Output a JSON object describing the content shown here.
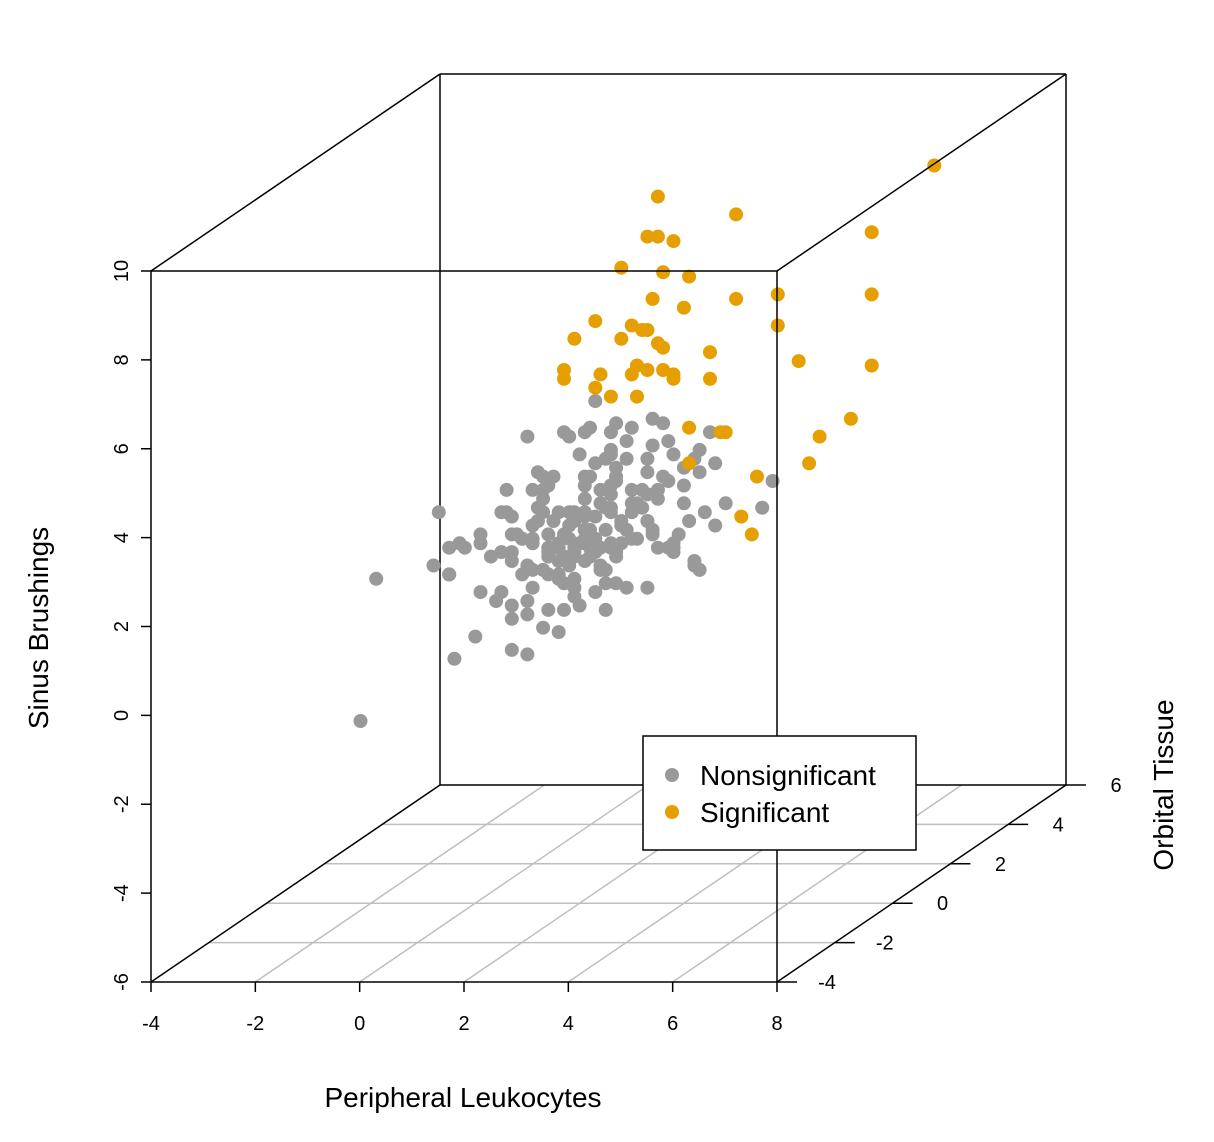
{
  "chart_data": {
    "type": "scatter3d",
    "title": "",
    "xlabel": "Peripheral Leukocytes",
    "ylabel": "Orbital Tissue",
    "zlabel": "Sinus Brushings",
    "xlim": [
      -4,
      8
    ],
    "ylim": [
      -4,
      6
    ],
    "zlim": [
      -6,
      10
    ],
    "x_ticks": [
      "-4",
      "-2",
      "0",
      "2",
      "4",
      "6",
      "8"
    ],
    "y_ticks": [
      "-4",
      "-2",
      "0",
      "2",
      "4",
      "6"
    ],
    "z_ticks": [
      "-6",
      "-4",
      "-2",
      "0",
      "2",
      "4",
      "6",
      "8",
      "10"
    ],
    "grid": "floor",
    "legend": {
      "position": "bottom-right",
      "entries": [
        "Nonsignificant",
        "Significant"
      ]
    },
    "colors": {
      "Nonsignificant": "#999999",
      "Significant": "#E69F00"
    },
    "series": [
      {
        "name": "Nonsignificant",
        "points": [
          [
            -0.4,
            0,
            -0.5
          ],
          [
            1.0,
            0,
            -0.4
          ],
          [
            -1.9,
            0,
            1.3
          ],
          [
            -2.2,
            0,
            -1.9
          ],
          [
            1.2,
            0,
            3.7
          ],
          [
            2.0,
            0,
            4.1
          ],
          [
            1.5,
            0,
            3.6
          ],
          [
            2.4,
            0,
            3.3
          ],
          [
            0.1,
            0,
            2.3
          ],
          [
            1.8,
            0,
            2.5
          ],
          [
            3.2,
            0,
            2.9
          ],
          [
            2.5,
            0,
            2.9
          ],
          [
            3.6,
            0,
            3.6
          ],
          [
            3.7,
            0,
            3.5
          ],
          [
            -0.5,
            0,
            2.0
          ],
          [
            0.1,
            0,
            2.1
          ],
          [
            1.3,
            0,
            3.1
          ],
          [
            1.9,
            0,
            2.6
          ],
          [
            0.7,
            0,
            1.9
          ],
          [
            2.1,
            0,
            2.1
          ],
          [
            2.2,
            0,
            2.4
          ],
          [
            -0.5,
            0,
            1.4
          ],
          [
            -0.7,
            0,
            2.8
          ],
          [
            1.1,
            0,
            2.1
          ],
          [
            -0.2,
            0,
            2.0
          ],
          [
            1.0,
            0,
            1.6
          ],
          [
            1.0,
            0,
            0.8
          ],
          [
            3.4,
            0,
            2.3
          ],
          [
            1.9,
            0,
            2.8
          ],
          [
            2.6,
            0,
            2.0
          ],
          [
            1.1,
            0,
            2.5
          ],
          [
            1.6,
            0,
            1.7
          ],
          [
            2.5,
            0,
            4.0
          ],
          [
            4.3,
            0,
            3.7
          ],
          [
            0.7,
            0,
            2.7
          ],
          [
            1.1,
            0,
            3.3
          ],
          [
            2.5,
            0,
            1.2
          ],
          [
            1.1,
            0,
            2.2
          ],
          [
            2.1,
            0,
            2.4
          ],
          [
            3.3,
            0,
            1.1
          ],
          [
            2.6,
            0,
            2.9
          ],
          [
            3.5,
            0,
            3.3
          ],
          [
            1.4,
            0,
            1.4
          ],
          [
            4.4,
            0,
            2.8
          ],
          [
            0.7,
            0,
            1.7
          ],
          [
            2.1,
            0,
            1.7
          ],
          [
            1.9,
            0,
            1.9
          ],
          [
            1.3,
            0,
            3.3
          ],
          [
            1.6,
            0,
            2.8
          ],
          [
            2.1,
            0,
            3.1
          ],
          [
            1.0,
            0,
            4.5
          ],
          [
            3.2,
            0,
            3.3
          ],
          [
            3.0,
            0,
            2.8
          ],
          [
            3.3,
            0,
            4.0
          ],
          [
            1.8,
            0,
            2.2
          ],
          [
            2.3,
            0,
            2.2
          ],
          [
            3.3,
            0,
            3.7
          ],
          [
            4.6,
            0,
            3.9
          ],
          [
            2.4,
            0,
            3.0
          ],
          [
            3.9,
            0,
            2.3
          ],
          [
            2.6,
            0,
            3.2
          ],
          [
            4.0,
            0,
            3.8
          ],
          [
            1.7,
            0,
            1.8
          ],
          [
            1.6,
            0,
            2.1
          ],
          [
            3.1,
            0,
            2.2
          ],
          [
            2.7,
            0,
            3.8
          ],
          [
            2.1,
            0,
            2.8
          ],
          [
            2.1,
            0,
            3.4
          ],
          [
            2.9,
            0,
            1.1
          ],
          [
            5.5,
            0,
            2.9
          ],
          [
            0.5,
            0,
            1.0
          ],
          [
            2.3,
            0,
            2.7
          ],
          [
            3.0,
            0,
            3.3
          ],
          [
            1.2,
            0,
            2.9
          ],
          [
            2.1,
            0,
            3.6
          ],
          [
            2.6,
            0,
            4.2
          ],
          [
            0.3,
            0,
            1.8
          ],
          [
            2.2,
            0,
            1.8
          ],
          [
            2.1,
            0,
            4.6
          ],
          [
            3.4,
            0,
            4.3
          ],
          [
            2.7,
            0,
            4.8
          ],
          [
            1.7,
            0,
            4.6
          ],
          [
            -0.5,
            0,
            1.4
          ],
          [
            2.6,
            0,
            4.1
          ],
          [
            4.8,
            0,
            3.0
          ],
          [
            4.3,
            0,
            4.2
          ],
          [
            3.4,
            0,
            2.4
          ],
          [
            0.5,
            0,
            2.8
          ],
          [
            2.4,
            0,
            2.0
          ],
          [
            2.9,
            0,
            4.0
          ],
          [
            0.1,
            0,
            1.0
          ],
          [
            3.8,
            0,
            4.1
          ],
          [
            2.5,
            0,
            0.6
          ],
          [
            1.0,
            0,
            0.5
          ],
          [
            1.8,
            0,
            2.8
          ],
          [
            2.7,
            0,
            1.9
          ],
          [
            1.7,
            0,
            1.2
          ],
          [
            2.7,
            0,
            2.0
          ],
          [
            1.3,
            0,
            3.6
          ],
          [
            1.8,
            0,
            4.5
          ],
          [
            1.4,
            0,
            3.4
          ],
          [
            5.7,
            0,
            3.5
          ],
          [
            0.9,
            0,
            1.4
          ],
          [
            1.3,
            0,
            2.8
          ],
          [
            2.1,
            0,
            2.7
          ],
          [
            4.1,
            0,
            2.6
          ],
          [
            2.8,
            0,
            2.5
          ],
          [
            2.1,
            0,
            2.4
          ],
          [
            2.3,
            0,
            5.3
          ],
          [
            4.2,
            0,
            1.7
          ],
          [
            2.6,
            0,
            2.1
          ],
          [
            1.4,
            0,
            2.3
          ],
          [
            3.5,
            0,
            2.0
          ],
          [
            2.5,
            0,
            2.4
          ],
          [
            1.3,
            0,
            1.5
          ],
          [
            2.9,
            0,
            2.4
          ],
          [
            3.7,
            0,
            2.0
          ],
          [
            3.8,
            0,
            2.1
          ],
          [
            1.9,
            0,
            1.1
          ],
          [
            4.2,
            0,
            1.6
          ],
          [
            2.4,
            0,
            1.5
          ],
          [
            1.6,
            0,
            1.4
          ],
          [
            0.4,
            0,
            0.8
          ],
          [
            1.6,
            0,
            0.1
          ],
          [
            0.7,
            0,
            -0.3
          ],
          [
            0.7,
            0,
            0.4
          ],
          [
            2.2,
            0,
            4.7
          ],
          [
            1.8,
            0,
            1.8
          ],
          [
            3.5,
            0,
            3.1
          ],
          [
            0.0,
            0,
            0.0
          ],
          [
            2.0,
            0,
            0.7
          ],
          [
            1.4,
            0,
            0.6
          ],
          [
            1.3,
            0,
            0.2
          ],
          [
            1.9,
            0,
            2.0
          ],
          [
            2.7,
            0,
            1.2
          ],
          [
            4.5,
            0,
            4.6
          ],
          [
            4.6,
            0,
            2.5
          ],
          [
            2.3,
            0,
            1.0
          ],
          [
            1.4,
            0,
            1.9
          ],
          [
            1.1,
            0,
            1.5
          ],
          [
            1.9,
            0,
            1.8
          ],
          [
            2.3,
            0,
            1.9
          ],
          [
            2.1,
            0,
            2.2
          ],
          [
            2.0,
            0,
            2.1
          ],
          [
            0.6,
            0,
            3.3
          ],
          [
            4.2,
            0,
            4.0
          ],
          [
            2.7,
            0,
            3.5
          ],
          [
            2.8,
            0,
            2.6
          ],
          [
            1.4,
            0,
            2.0
          ],
          [
            3.7,
            0,
            4.4
          ],
          [
            2.9,
            0,
            4.4
          ],
          [
            4.0,
            0,
            3.0
          ],
          [
            1.5,
            0,
            2.6
          ],
          [
            3.0,
            0,
            3.0
          ],
          [
            2.7,
            0,
            1.8
          ],
          [
            2.6,
            0,
            3.4
          ],
          [
            3.8,
            0,
            2.0
          ],
          [
            4.3,
            0,
            1.5
          ],
          [
            1.6,
            0,
            2.0
          ],
          [
            0.9,
            0,
            2.2
          ],
          [
            3.1,
            0,
            3.0
          ],
          [
            1.9,
            0,
            0.9
          ],
          [
            3.3,
            0,
            3.2
          ],
          [
            4.0,
            0,
            3.4
          ],
          [
            2.7,
            0,
            3.6
          ],
          [
            1.4,
            0,
            1.8
          ],
          [
            0.5,
            0,
            1.9
          ],
          [
            2.1,
            0,
            2.4
          ],
          [
            3.8,
            0,
            1.9
          ],
          [
            2.4,
            0,
            1.6
          ],
          [
            2.3,
            0,
            3.9
          ],
          [
            2.5,
            0,
            1.5
          ],
          [
            3.0,
            0,
            2.2
          ],
          [
            1.8,
            0,
            1.6
          ],
          [
            1.2,
            0,
            2.6
          ],
          [
            2.2,
            0,
            3.6
          ],
          [
            2.9,
            0,
            2.4
          ],
          [
            1.5,
            0,
            2.0
          ],
          [
            1.7,
            0,
            2.3
          ],
          [
            0.9,
            0,
            2.2
          ],
          [
            -0.8,
            0,
            1.6
          ],
          [
            0.7,
            0,
            0.7
          ],
          [
            -0.3,
            0,
            2.1
          ],
          [
            1.7,
            0,
            0.6
          ],
          [
            2.2,
            0,
            2.0
          ],
          [
            3.0,
            0,
            4.7
          ],
          [
            0.7,
            0,
            2.3
          ],
          [
            2.6,
            0,
            3.4
          ],
          [
            2.6,
            0,
            4.6
          ],
          [
            3.6,
            0,
            4.8
          ],
          [
            2.2,
            0,
            2.2
          ],
          [
            0.6,
            0,
            2.8
          ],
          [
            1.9,
            0,
            1.3
          ],
          [
            1.6,
            0,
            1.3
          ],
          [
            1.1,
            0,
            1.1
          ],
          [
            3.3,
            0,
            2.6
          ],
          [
            2.8,
            0,
            2.1
          ],
          [
            0.8,
            0,
            2.3
          ],
          [
            2.6,
            0,
            2.8
          ],
          [
            3.4,
            0,
            4.9
          ]
        ]
      },
      {
        "name": "Significant",
        "points": [
          [
            3.5,
            0,
            9.0
          ],
          [
            3.5,
            0,
            9.9
          ],
          [
            3.8,
            0,
            8.9
          ],
          [
            5.0,
            0,
            9.5
          ],
          [
            5.0,
            0,
            7.6
          ],
          [
            3.0,
            0,
            7.0
          ],
          [
            4.0,
            0,
            7.4
          ],
          [
            3.2,
            0,
            6.9
          ],
          [
            3.6,
            0,
            6.0
          ],
          [
            2.8,
            0,
            6.7
          ],
          [
            1.9,
            0,
            6.7
          ],
          [
            3.1,
            0,
            6.1
          ],
          [
            2.6,
            0,
            5.4
          ],
          [
            2.4,
            0,
            5.9
          ],
          [
            2.3,
            0,
            7.1
          ],
          [
            3.4,
            0,
            7.6
          ],
          [
            3.6,
            0,
            8.2
          ],
          [
            2.8,
            0,
            8.3
          ],
          [
            3.3,
            0,
            9.0
          ],
          [
            4.1,
            0,
            8.1
          ],
          [
            3.1,
            0,
            5.4
          ],
          [
            4.5,
            0,
            6.4
          ],
          [
            4.1,
            0,
            4.7
          ],
          [
            4.5,
            0,
            5.8
          ],
          [
            3.8,
            0,
            5.8
          ],
          [
            3.3,
            0,
            6.9
          ],
          [
            3.5,
            0,
            6.6
          ],
          [
            3.3,
            0,
            6.0
          ],
          [
            3.8,
            0,
            5.9
          ],
          [
            3.6,
            0,
            6.5
          ],
          [
            3.0,
            0,
            5.9
          ],
          [
            1.7,
            0,
            5.8
          ],
          [
            2.3,
            0,
            5.6
          ],
          [
            4.8,
            0,
            4.6
          ],
          [
            4.7,
            0,
            4.6
          ],
          [
            1.7,
            0,
            6.0
          ],
          [
            5.8,
            0,
            7.7
          ],
          [
            5.8,
            0,
            7.0
          ],
          [
            6.2,
            0,
            6.2
          ],
          [
            6.6,
            0,
            4.5
          ],
          [
            5.1,
            0,
            2.7
          ],
          [
            5.3,
            0,
            2.3
          ],
          [
            4.1,
            0,
            3.9
          ],
          [
            5.4,
            0,
            3.6
          ],
          [
            6.4,
            0,
            3.9
          ],
          [
            7.2,
            0,
            4.9
          ],
          [
            7.6,
            0,
            6.1
          ],
          [
            7.6,
            0,
            7.7
          ],
          [
            7.6,
            0,
            9.1
          ],
          [
            8.8,
            0,
            10.6
          ]
        ]
      }
    ]
  }
}
